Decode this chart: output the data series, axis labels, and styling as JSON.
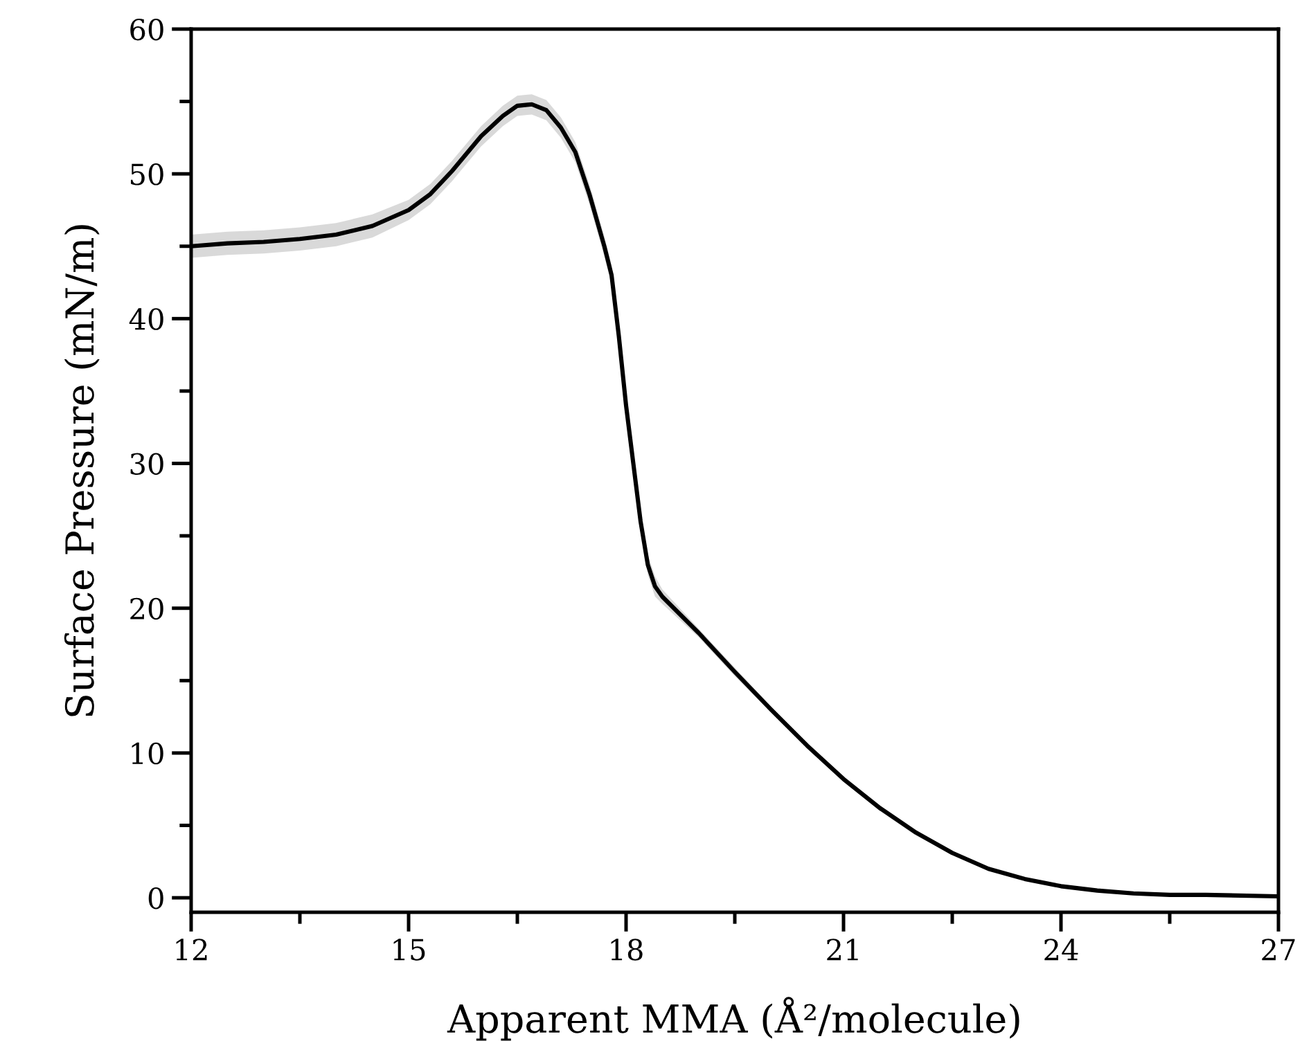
{
  "chart_data": {
    "type": "line",
    "xlabel": "Apparent MMA (Å²/molecule)",
    "ylabel": "Surface Pressure (mN/m)",
    "xlim": [
      12,
      27
    ],
    "xticks": [
      12,
      15,
      18,
      21,
      24,
      27
    ],
    "ylim": [
      -1,
      60
    ],
    "yticks": [
      0,
      10,
      20,
      30,
      40,
      50,
      60
    ],
    "marker": "none",
    "line_style": "solid",
    "series": [
      {
        "color": "#000000",
        "x": [
          12,
          12.5,
          13,
          13.5,
          14,
          14.5,
          15,
          15.3,
          15.6,
          16,
          16.3,
          16.5,
          16.7,
          16.9,
          17.1,
          17.3,
          17.5,
          17.7,
          17.8,
          17.9,
          18,
          18.1,
          18.2,
          18.3,
          18.4,
          18.5,
          19,
          19.5,
          20,
          20.5,
          21,
          21.5,
          22,
          22.5,
          23,
          23.5,
          24,
          24.5,
          25,
          25.5,
          26,
          27
        ],
        "values": [
          45.0,
          45.2,
          45.3,
          45.5,
          45.8,
          46.4,
          47.5,
          48.6,
          50.2,
          52.6,
          54.0,
          54.7,
          54.8,
          54.4,
          53.2,
          51.5,
          48.5,
          45.0,
          43.0,
          38.8,
          34.0,
          30.0,
          26.0,
          23.0,
          21.5,
          20.8,
          18.3,
          15.6,
          13.0,
          10.5,
          8.2,
          6.2,
          4.5,
          3.1,
          2.0,
          1.3,
          0.8,
          0.5,
          0.3,
          0.2,
          0.2,
          0.1
        ],
        "lower": [
          44.2,
          44.4,
          44.5,
          44.7,
          45.0,
          45.6,
          46.8,
          47.9,
          49.5,
          51.9,
          53.3,
          54.0,
          54.1,
          53.7,
          52.5,
          50.8,
          47.8,
          44.3,
          42.3,
          38.1,
          33.3,
          29.3,
          25.3,
          22.3,
          20.8,
          20.3,
          18.0,
          15.3,
          12.8,
          10.3,
          8.0,
          6.0,
          4.3,
          3.0,
          1.9,
          1.2,
          0.7,
          0.4,
          0.2,
          0.1,
          0.05,
          0.0
        ],
        "upper": [
          45.8,
          46.0,
          46.1,
          46.3,
          46.6,
          47.2,
          48.2,
          49.3,
          50.9,
          53.3,
          54.7,
          55.4,
          55.5,
          55.1,
          53.9,
          52.2,
          49.2,
          45.7,
          43.7,
          39.5,
          34.7,
          30.7,
          26.7,
          23.7,
          22.2,
          21.3,
          18.6,
          15.9,
          13.2,
          10.7,
          8.4,
          6.4,
          4.7,
          3.2,
          2.1,
          1.4,
          0.9,
          0.6,
          0.4,
          0.3,
          0.25,
          0.2
        ]
      }
    ]
  }
}
